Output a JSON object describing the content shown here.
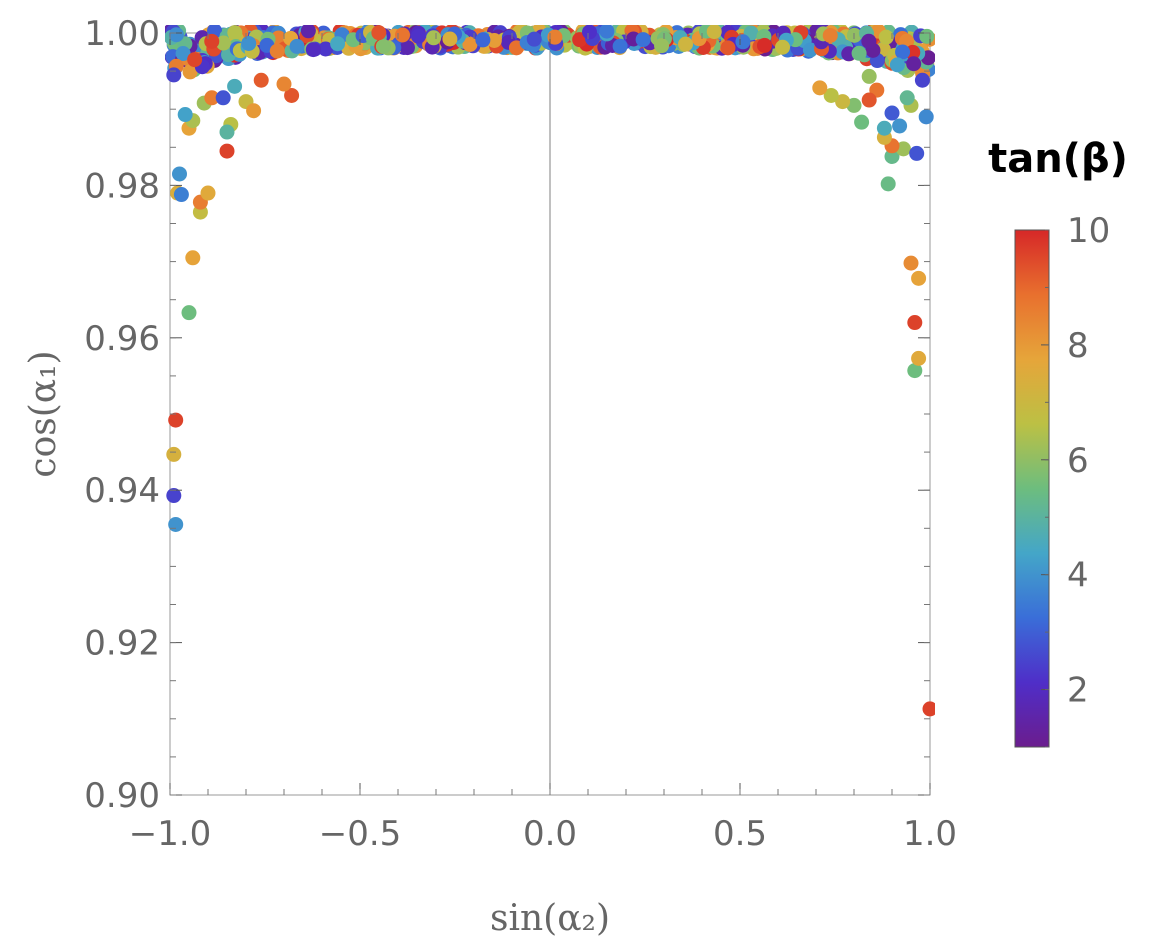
{
  "chart_data": {
    "type": "scatter",
    "title": "",
    "xlabel": "sin(α₂)",
    "ylabel": "cos(α₁)",
    "xlim": [
      -1.0,
      1.0
    ],
    "ylim": [
      0.9,
      1.0
    ],
    "x_ticks": [
      "−1.0",
      "−0.5",
      "0.0",
      "0.5",
      "1.0"
    ],
    "x_tick_values": [
      -1.0,
      -0.5,
      0.0,
      0.5,
      1.0
    ],
    "y_ticks": [
      "0.90",
      "0.92",
      "0.94",
      "0.96",
      "0.98",
      "1.00"
    ],
    "y_tick_values": [
      0.9,
      0.92,
      0.94,
      0.96,
      0.98,
      1.0
    ],
    "colorbar": {
      "title": "tan(β)",
      "range": [
        1,
        10
      ],
      "ticks": [
        "2",
        "4",
        "6",
        "8",
        "10"
      ],
      "tick_values": [
        2,
        4,
        6,
        8,
        10
      ],
      "colors": [
        "#6b1d8e",
        "#4f2ec8",
        "#3a6ed8",
        "#44a6c8",
        "#6dbd7e",
        "#bcc044",
        "#e6a53a",
        "#e8702e",
        "#d62828"
      ]
    },
    "points": [
      {
        "x": -0.99,
        "y": 0.9393,
        "c": 2.5
      },
      {
        "x": -0.985,
        "y": 0.9355,
        "c": 4.0
      },
      {
        "x": -0.99,
        "y": 0.9447,
        "c": 7.3
      },
      {
        "x": -0.985,
        "y": 0.9492,
        "c": 9.6
      },
      {
        "x": -0.95,
        "y": 0.9633,
        "c": 5.5
      },
      {
        "x": -0.94,
        "y": 0.9705,
        "c": 7.8
      },
      {
        "x": -0.92,
        "y": 0.9765,
        "c": 6.8
      },
      {
        "x": -0.92,
        "y": 0.9778,
        "c": 8.6
      },
      {
        "x": -0.9,
        "y": 0.979,
        "c": 7.6
      },
      {
        "x": -0.98,
        "y": 0.979,
        "c": 7.4
      },
      {
        "x": -0.97,
        "y": 0.9788,
        "c": 3.6
      },
      {
        "x": -0.975,
        "y": 0.9815,
        "c": 4.0
      },
      {
        "x": -0.85,
        "y": 0.9845,
        "c": 9.6
      },
      {
        "x": -0.84,
        "y": 0.988,
        "c": 6.6
      },
      {
        "x": -0.85,
        "y": 0.987,
        "c": 5.0
      },
      {
        "x": -0.95,
        "y": 0.9875,
        "c": 7.8
      },
      {
        "x": -0.94,
        "y": 0.9885,
        "c": 6.4
      },
      {
        "x": -0.96,
        "y": 0.9893,
        "c": 4.3
      },
      {
        "x": -0.91,
        "y": 0.9908,
        "c": 6.2
      },
      {
        "x": -0.89,
        "y": 0.9915,
        "c": 8.6
      },
      {
        "x": -0.86,
        "y": 0.9915,
        "c": 2.8
      },
      {
        "x": -0.83,
        "y": 0.993,
        "c": 4.6
      },
      {
        "x": -0.8,
        "y": 0.991,
        "c": 6.9
      },
      {
        "x": -0.78,
        "y": 0.9898,
        "c": 8.0
      },
      {
        "x": -0.76,
        "y": 0.9938,
        "c": 9.2
      },
      {
        "x": -0.68,
        "y": 0.9918,
        "c": 9.3
      },
      {
        "x": -0.7,
        "y": 0.9933,
        "c": 8.4
      },
      {
        "x": -0.99,
        "y": 0.9945,
        "c": 2.5
      },
      {
        "x": 1.0,
        "y": 0.9113,
        "c": 9.6
      },
      {
        "x": 0.96,
        "y": 0.9557,
        "c": 5.5
      },
      {
        "x": 0.97,
        "y": 0.9573,
        "c": 7.6
      },
      {
        "x": 0.96,
        "y": 0.962,
        "c": 9.6
      },
      {
        "x": 0.97,
        "y": 0.9678,
        "c": 7.8
      },
      {
        "x": 0.95,
        "y": 0.9698,
        "c": 8.3
      },
      {
        "x": 0.89,
        "y": 0.9802,
        "c": 5.4
      },
      {
        "x": 0.9,
        "y": 0.9838,
        "c": 5.3
      },
      {
        "x": 0.93,
        "y": 0.9848,
        "c": 6.2
      },
      {
        "x": 0.9,
        "y": 0.9852,
        "c": 8.8
      },
      {
        "x": 0.965,
        "y": 0.9842,
        "c": 2.8
      },
      {
        "x": 0.88,
        "y": 0.9863,
        "c": 7.3
      },
      {
        "x": 0.82,
        "y": 0.9883,
        "c": 5.5
      },
      {
        "x": 0.88,
        "y": 0.9875,
        "c": 4.6
      },
      {
        "x": 0.92,
        "y": 0.9878,
        "c": 4.0
      },
      {
        "x": 0.9,
        "y": 0.9895,
        "c": 2.9
      },
      {
        "x": 0.95,
        "y": 0.9905,
        "c": 6.4
      },
      {
        "x": 0.94,
        "y": 0.9915,
        "c": 5.2
      },
      {
        "x": 0.99,
        "y": 0.989,
        "c": 3.8
      },
      {
        "x": 0.86,
        "y": 0.9925,
        "c": 8.8
      },
      {
        "x": 0.84,
        "y": 0.9912,
        "c": 9.3
      },
      {
        "x": 0.8,
        "y": 0.9905,
        "c": 5.8
      },
      {
        "x": 0.77,
        "y": 0.991,
        "c": 7.0
      },
      {
        "x": 0.74,
        "y": 0.9918,
        "c": 6.6
      },
      {
        "x": 0.71,
        "y": 0.9928,
        "c": 7.9
      },
      {
        "x": 0.98,
        "y": 0.9938,
        "c": 2.5
      },
      {
        "x": 0.84,
        "y": 0.9943,
        "c": 6.1
      }
    ]
  }
}
